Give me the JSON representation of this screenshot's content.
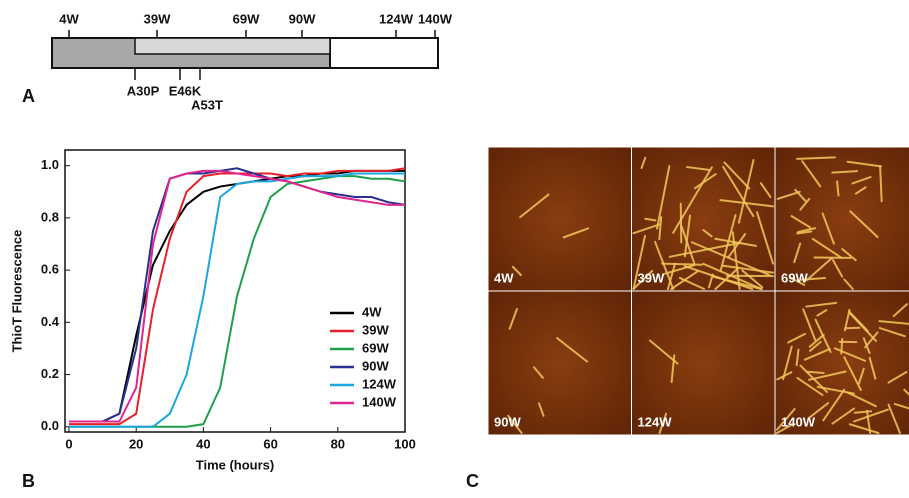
{
  "panel_a": {
    "label": "A",
    "positions": [
      "4W",
      "39W",
      "69W",
      "90W",
      "124W",
      "140W"
    ],
    "mutations": [
      "A30P",
      "E46K",
      "A53T"
    ]
  },
  "panel_b": {
    "label": "B"
  },
  "chart_data": {
    "type": "line",
    "x_label": "Time (hours)",
    "y_label": "ThioT Fluorescence",
    "x": [
      0,
      5,
      10,
      15,
      20,
      25,
      30,
      35,
      40,
      45,
      50,
      55,
      60,
      65,
      70,
      75,
      80,
      85,
      90,
      95,
      100
    ],
    "series": [
      {
        "name": "4W",
        "color": "#000000",
        "values": [
          0.02,
          0.02,
          0.02,
          0.05,
          0.35,
          0.62,
          0.75,
          0.85,
          0.9,
          0.92,
          0.93,
          0.94,
          0.95,
          0.96,
          0.96,
          0.97,
          0.97,
          0.98,
          0.98,
          0.98,
          0.98
        ]
      },
      {
        "name": "39W",
        "color": "#e8202a",
        "values": [
          0.01,
          0.01,
          0.01,
          0.01,
          0.05,
          0.45,
          0.72,
          0.9,
          0.96,
          0.97,
          0.97,
          0.97,
          0.97,
          0.96,
          0.97,
          0.97,
          0.98,
          0.98,
          0.98,
          0.98,
          0.99
        ]
      },
      {
        "name": "69W",
        "color": "#1fa04a",
        "values": [
          0,
          0,
          0,
          0,
          0,
          0,
          0,
          0,
          0.01,
          0.15,
          0.5,
          0.72,
          0.88,
          0.93,
          0.94,
          0.95,
          0.96,
          0.96,
          0.95,
          0.95,
          0.94
        ]
      },
      {
        "name": "90W",
        "color": "#2b2f8f",
        "values": [
          0.02,
          0.02,
          0.02,
          0.05,
          0.3,
          0.75,
          0.95,
          0.97,
          0.97,
          0.98,
          0.99,
          0.97,
          0.95,
          0.94,
          0.92,
          0.9,
          0.89,
          0.88,
          0.88,
          0.86,
          0.85
        ]
      },
      {
        "name": "124W",
        "color": "#1aa7e0",
        "values": [
          0,
          0,
          0,
          0,
          0,
          0,
          0.05,
          0.2,
          0.5,
          0.88,
          0.93,
          0.94,
          0.94,
          0.95,
          0.96,
          0.96,
          0.96,
          0.97,
          0.97,
          0.97,
          0.97
        ]
      },
      {
        "name": "140W",
        "color": "#e0258f",
        "values": [
          0.02,
          0.02,
          0.02,
          0.02,
          0.15,
          0.7,
          0.95,
          0.97,
          0.98,
          0.98,
          0.97,
          0.96,
          0.95,
          0.94,
          0.92,
          0.9,
          0.88,
          0.87,
          0.86,
          0.85,
          0.85
        ]
      }
    ],
    "xlim": [
      0,
      100
    ],
    "xticks": [
      0,
      20,
      40,
      60,
      80,
      100
    ],
    "ylim": [
      -0.02,
      1.06
    ],
    "yticks": [
      {
        "value": 0,
        "label": "0.0"
      },
      0.2,
      0.4,
      0.6,
      0.8,
      {
        "value": 1,
        "label": "1.0"
      }
    ],
    "legend": "lower-right"
  },
  "panel_c": {
    "label": "C",
    "images": [
      "4W",
      "39W",
      "69W",
      "90W",
      "124W",
      "140W"
    ]
  }
}
